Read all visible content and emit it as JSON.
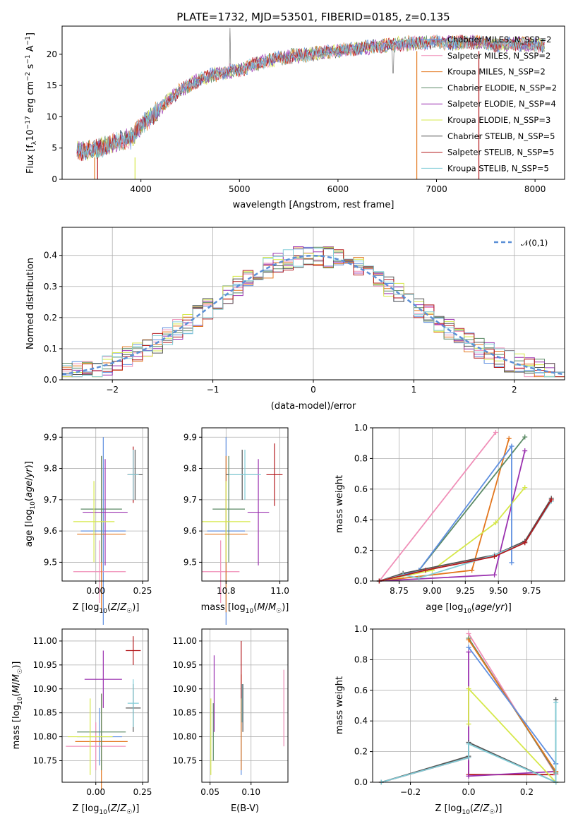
{
  "chart_data": [
    {
      "id": "spectrum",
      "type": "line",
      "title": "PLATE=1732, MJD=53501, FIBERID=0185, z=0.135",
      "xlabel": "wavelength [Angstrom, rest frame]",
      "ylabel": "Flux [f_λ 10^-17 erg cm^-2 s^-1 A^-1]",
      "xlim": [
        3200,
        8300
      ],
      "ylim": [
        0,
        24.5
      ],
      "xticks": [
        4000,
        5000,
        6000,
        7000,
        8000
      ],
      "yticks": [
        0,
        5,
        10,
        15,
        20
      ],
      "legend_position": "right",
      "series": [
        {
          "name": "Chabrier MILES, N_SSP=2",
          "color": "#5e8fe0"
        },
        {
          "name": "Salpeter MILES, N_SSP=2",
          "color": "#f08fb8"
        },
        {
          "name": "Kroupa MILES, N_SSP=2",
          "color": "#e3761d"
        },
        {
          "name": "Chabrier ELODIE, N_SSP=2",
          "color": "#5b8a65"
        },
        {
          "name": "Salpeter ELODIE, N_SSP=4",
          "color": "#9b32b0"
        },
        {
          "name": "Kroupa ELODIE, N_SSP=3",
          "color": "#d6e84a"
        },
        {
          "name": "Chabrier STELIB, N_SSP=5",
          "color": "#555555"
        },
        {
          "name": "Salpeter STELIB, N_SSP=5",
          "color": "#b3191d"
        },
        {
          "name": "Kroupa STELIB, N_SSP=5",
          "color": "#82cdd8"
        }
      ],
      "continuum": {
        "x": [
          3350,
          3500,
          3700,
          3900,
          4000,
          4200,
          4400,
          4600,
          4800,
          5000,
          5200,
          5400,
          5600,
          5800,
          6000,
          6200,
          6400,
          6600,
          6800,
          7000,
          7200,
          7400,
          7600,
          7800,
          8000,
          8100
        ],
        "y": [
          4.7,
          4.6,
          5.8,
          6.5,
          8.5,
          11.5,
          14.3,
          16.0,
          17.0,
          17.5,
          18.6,
          19.4,
          19.8,
          20.2,
          20.6,
          21.0,
          21.3,
          21.6,
          21.8,
          22.0,
          21.8,
          22.0,
          21.5,
          21.7,
          21.6,
          21.3
        ]
      }
    },
    {
      "id": "residuals",
      "type": "histogram",
      "xlabel": "(data-model)/error",
      "ylabel": "Normed distribution",
      "xlim": [
        -2.5,
        2.5
      ],
      "ylim": [
        0,
        0.49
      ],
      "xticks": [
        -2,
        -1,
        0,
        1,
        2
      ],
      "yticks": [
        0.0,
        0.1,
        0.2,
        0.3,
        0.4
      ],
      "grid": true,
      "legend_position": "top-right",
      "reference_curve": {
        "name": "𝒩(0,1)",
        "color": "#5b8fd6",
        "style": "dashed"
      },
      "bin_width": 0.1
    },
    {
      "id": "age_vs_Z",
      "type": "errorbar",
      "xlabel": "Z [log10(Z/Z☉)]",
      "ylabel": "age  [log10(age/yr)]",
      "xlim": [
        -0.18,
        0.28
      ],
      "ylim": [
        9.44,
        9.93
      ],
      "xticks": [
        0.0,
        0.25
      ],
      "yticks": [
        9.5,
        9.6,
        9.7,
        9.8,
        9.9
      ],
      "grid": true,
      "points": [
        {
          "x": 0.04,
          "y": 9.6,
          "xerr": 0.12,
          "yerr": 0.3,
          "color": "#5e8fe0"
        },
        {
          "x": 0.02,
          "y": 9.47,
          "xerr": 0.14,
          "yerr": 0.1,
          "color": "#f08fb8"
        },
        {
          "x": 0.03,
          "y": 9.59,
          "xerr": 0.13,
          "yerr": 0.25,
          "color": "#e3761d"
        },
        {
          "x": 0.03,
          "y": 9.67,
          "xerr": 0.11,
          "yerr": 0.17,
          "color": "#5b8a65"
        },
        {
          "x": 0.05,
          "y": 9.66,
          "xerr": 0.12,
          "yerr": 0.17,
          "color": "#9b32b0"
        },
        {
          "x": -0.01,
          "y": 9.63,
          "xerr": 0.11,
          "yerr": 0.13,
          "color": "#d6e84a"
        },
        {
          "x": 0.21,
          "y": 9.78,
          "xerr": 0.04,
          "yerr": 0.08,
          "color": "#555555"
        },
        {
          "x": 0.2,
          "y": 9.78,
          "xerr": 0.03,
          "yerr": 0.09,
          "color": "#b3191d"
        },
        {
          "x": 0.2,
          "y": 9.78,
          "xerr": 0.03,
          "yerr": 0.08,
          "color": "#82cdd8"
        }
      ]
    },
    {
      "id": "age_vs_mass",
      "type": "errorbar",
      "xlabel": "mass [log10(M/M☉)]",
      "ylabel": "",
      "xlim": [
        10.71,
        11.03
      ],
      "ylim": [
        9.44,
        9.93
      ],
      "xticks": [
        10.8,
        11.0
      ],
      "yticks": [
        9.5,
        9.6,
        9.7,
        9.8,
        9.9
      ],
      "grid": true,
      "points": [
        {
          "x": 10.8,
          "y": 9.6,
          "xerr": 0.07,
          "yerr": 0.3,
          "color": "#5e8fe0"
        },
        {
          "x": 10.78,
          "y": 9.47,
          "xerr": 0.07,
          "yerr": 0.1,
          "color": "#f08fb8"
        },
        {
          "x": 10.8,
          "y": 9.59,
          "xerr": 0.08,
          "yerr": 0.25,
          "color": "#e3761d"
        },
        {
          "x": 10.81,
          "y": 9.67,
          "xerr": 0.06,
          "yerr": 0.17,
          "color": "#5b8a65"
        },
        {
          "x": 10.92,
          "y": 9.66,
          "xerr": 0.04,
          "yerr": 0.17,
          "color": "#9b32b0"
        },
        {
          "x": 10.8,
          "y": 9.63,
          "xerr": 0.09,
          "yerr": 0.13,
          "color": "#d6e84a"
        },
        {
          "x": 10.86,
          "y": 9.78,
          "xerr": 0.06,
          "yerr": 0.08,
          "color": "#555555"
        },
        {
          "x": 10.98,
          "y": 9.78,
          "xerr": 0.03,
          "yerr": 0.1,
          "color": "#b3191d"
        },
        {
          "x": 10.87,
          "y": 9.78,
          "xerr": 0.06,
          "yerr": 0.08,
          "color": "#82cdd8"
        }
      ]
    },
    {
      "id": "cum_weight_age",
      "type": "line",
      "xlabel": "age  [log10(age/yr)]",
      "ylabel": "mass weight",
      "xlim": [
        8.55,
        10.0
      ],
      "ylim": [
        0,
        1.0
      ],
      "xticks": [
        8.75,
        9.0,
        9.25,
        9.5,
        9.75
      ],
      "yticks": [
        0.0,
        0.2,
        0.4,
        0.6,
        0.8,
        1.0
      ],
      "grid": true,
      "series": [
        {
          "color": "#f08fb8",
          "x": [
            8.6,
            9.48
          ],
          "y": [
            0.0,
            0.97
          ]
        },
        {
          "color": "#e3761d",
          "x": [
            8.6,
            9.3,
            9.58
          ],
          "y": [
            0.0,
            0.07,
            0.93
          ]
        },
        {
          "color": "#5b8a65",
          "x": [
            8.6,
            8.9,
            9.7
          ],
          "y": [
            0.0,
            0.07,
            0.94
          ]
        },
        {
          "color": "#9b32b0",
          "x": [
            8.6,
            9.47,
            9.7
          ],
          "y": [
            0.0,
            0.04,
            0.85
          ]
        },
        {
          "color": "#d6e84a",
          "x": [
            8.6,
            9.0,
            9.48,
            9.7
          ],
          "y": [
            0.0,
            0.07,
            0.38,
            0.61
          ]
        },
        {
          "color": "#5e8fe0",
          "x": [
            8.6,
            8.9,
            9.6,
            9.6
          ],
          "y": [
            0.0,
            0.07,
            0.88,
            0.12
          ]
        },
        {
          "color": "#555555",
          "x": [
            8.6,
            8.78,
            9.47,
            9.7,
            9.9
          ],
          "y": [
            0.0,
            0.05,
            0.17,
            0.26,
            0.54
          ]
        },
        {
          "color": "#82cdd8",
          "x": [
            8.6,
            8.78,
            8.9,
            9.47,
            9.7,
            9.9
          ],
          "y": [
            0.0,
            0.04,
            0.02,
            0.17,
            0.25,
            0.52
          ]
        },
        {
          "color": "#b3191d",
          "x": [
            8.6,
            8.95,
            9.47,
            9.7,
            9.9
          ],
          "y": [
            0.0,
            0.07,
            0.16,
            0.25,
            0.53
          ]
        }
      ]
    },
    {
      "id": "mass_vs_Z",
      "type": "errorbar",
      "xlabel": "Z [log10(Z/Z☉)]",
      "ylabel": "mass [log10(M/M☉)]",
      "xlim": [
        -0.18,
        0.28
      ],
      "ylim": [
        10.705,
        11.025
      ],
      "xticks": [
        0.0,
        0.25
      ],
      "yticks": [
        10.75,
        10.8,
        10.85,
        10.9,
        10.95,
        11.0
      ],
      "grid": true,
      "points": [
        {
          "x": 0.02,
          "y": 10.8,
          "xerr": 0.12,
          "yerr": 0.06,
          "color": "#5e8fe0"
        },
        {
          "x": 0.0,
          "y": 10.78,
          "xerr": 0.16,
          "yerr": 0.05,
          "color": "#f08fb8"
        },
        {
          "x": 0.03,
          "y": 10.79,
          "xerr": 0.14,
          "yerr": 0.1,
          "color": "#e3761d"
        },
        {
          "x": 0.03,
          "y": 10.81,
          "xerr": 0.13,
          "yerr": 0.08,
          "color": "#5b8a65"
        },
        {
          "x": 0.04,
          "y": 10.92,
          "xerr": 0.1,
          "yerr": 0.06,
          "color": "#9b32b0"
        },
        {
          "x": -0.03,
          "y": 10.8,
          "xerr": 0.12,
          "yerr": 0.08,
          "color": "#d6e84a"
        },
        {
          "x": 0.2,
          "y": 10.86,
          "xerr": 0.04,
          "yerr": 0.05,
          "color": "#555555"
        },
        {
          "x": 0.2,
          "y": 10.98,
          "xerr": 0.04,
          "yerr": 0.03,
          "color": "#b3191d"
        },
        {
          "x": 0.2,
          "y": 10.87,
          "xerr": 0.03,
          "yerr": 0.05,
          "color": "#82cdd8"
        }
      ]
    },
    {
      "id": "mass_vs_ebv",
      "type": "errorbar",
      "xlabel": "E(B-V)",
      "ylabel": "",
      "xlim": [
        0.04,
        0.145
      ],
      "ylim": [
        10.705,
        11.025
      ],
      "xticks": [
        0.05,
        0.1
      ],
      "yticks": [
        10.75,
        10.8,
        10.85,
        10.9,
        10.95,
        11.0
      ],
      "grid": true,
      "points": [
        {
          "x": 0.088,
          "y": 10.8,
          "yerr": 0.08,
          "color": "#5e8fe0"
        },
        {
          "x": 0.14,
          "y": 10.86,
          "yerr": 0.08,
          "color": "#f08fb8"
        },
        {
          "x": 0.088,
          "y": 10.83,
          "yerr": 0.1,
          "color": "#e3761d"
        },
        {
          "x": 0.054,
          "y": 10.81,
          "yerr": 0.06,
          "color": "#5b8a65"
        },
        {
          "x": 0.055,
          "y": 10.89,
          "yerr": 0.08,
          "color": "#9b32b0"
        },
        {
          "x": 0.051,
          "y": 10.8,
          "yerr": 0.08,
          "color": "#d6e84a"
        },
        {
          "x": 0.09,
          "y": 10.86,
          "yerr": 0.05,
          "color": "#555555"
        },
        {
          "x": 0.088,
          "y": 10.94,
          "yerr": 0.06,
          "color": "#b3191d"
        },
        {
          "x": 0.089,
          "y": 10.87,
          "yerr": 0.04,
          "color": "#82cdd8"
        }
      ]
    },
    {
      "id": "cum_weight_Z",
      "type": "line",
      "xlabel": "Z [log10(Z/Z☉)]",
      "ylabel": "mass weight",
      "xlim": [
        -0.33,
        0.33
      ],
      "ylim": [
        0,
        1.0
      ],
      "xticks": [
        -0.2,
        0.0,
        0.2
      ],
      "yticks": [
        0.0,
        0.2,
        0.4,
        0.6,
        0.8,
        1.0
      ],
      "grid": true,
      "series": [
        {
          "color": "#b3191d",
          "x": [
            -0.3,
            0.0,
            0.0,
            0.3
          ],
          "y": [
            0.0,
            0.16,
            0.05,
            0.05
          ]
        },
        {
          "color": "#9b32b0",
          "x": [
            0.0,
            0.0,
            0.3
          ],
          "y": [
            0.85,
            0.04,
            0.07
          ]
        },
        {
          "color": "#f08fb8",
          "x": [
            0.0,
            0.3
          ],
          "y": [
            0.97,
            0.05
          ]
        },
        {
          "color": "#5b8a65",
          "x": [
            0.0,
            0.3
          ],
          "y": [
            0.94,
            0.06
          ]
        },
        {
          "color": "#e3761d",
          "x": [
            0.0,
            0.3
          ],
          "y": [
            0.93,
            0.07
          ]
        },
        {
          "color": "#5e8fe0",
          "x": [
            0.0,
            0.3,
            0.3
          ],
          "y": [
            0.88,
            0.12,
            0.12
          ]
        },
        {
          "color": "#d6e84a",
          "x": [
            0.0,
            0.0,
            0.3
          ],
          "y": [
            0.38,
            0.61,
            0.0
          ]
        },
        {
          "color": "#555555",
          "x": [
            -0.3,
            0.0,
            0.0,
            0.3,
            0.3
          ],
          "y": [
            0.0,
            0.17,
            0.26,
            0.0,
            0.54
          ]
        },
        {
          "color": "#82cdd8",
          "x": [
            -0.3,
            0.0,
            0.0,
            0.3,
            0.3
          ],
          "y": [
            0.0,
            0.16,
            0.25,
            0.0,
            0.52
          ]
        }
      ]
    }
  ]
}
